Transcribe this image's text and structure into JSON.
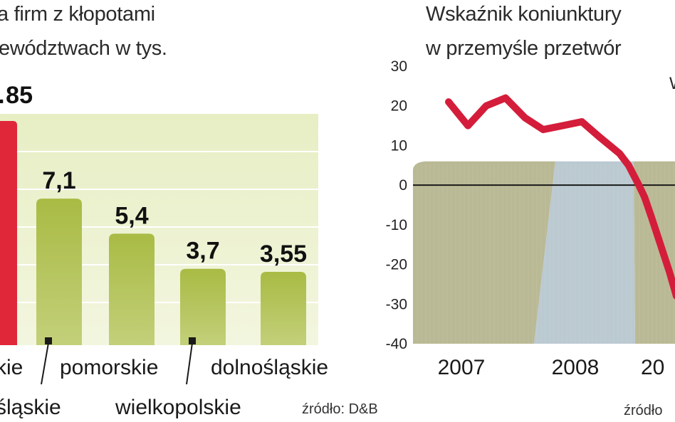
{
  "left": {
    "title_line1": "a firm z kłopotami",
    "title_line2": "ewództwach w tys.",
    "source": "źródło: D&B",
    "colors": {
      "highlight": "#e0273a",
      "bar": "#9fb03a",
      "bar_light": "#c9d67a",
      "bg_top": "#e9efc7",
      "bg_bottom": "#f6f8e6"
    },
    "chart_data": {
      "type": "bar",
      "categories": [
        "…kie",
        "…śląskie",
        "pomorskie",
        "wielkopolskie",
        "dolnośląskie"
      ],
      "values": [
        null,
        7.1,
        5.4,
        3.7,
        3.55
      ],
      "value_labels": [
        "…85",
        "7,1",
        "5,4",
        "3,7",
        "3,55"
      ],
      "highlight_index": 0,
      "category_labels": {
        "row1": [
          "kie",
          "pomorskie",
          "dolnośląskie"
        ],
        "row2": [
          "śląskie",
          "wielkopolskie"
        ]
      }
    }
  },
  "right": {
    "title_line1": "Wskaźnik koniunktury",
    "title_line2": "w przemyśle przetwór",
    "corner_label": "W",
    "source": "źródło",
    "colors": {
      "line": "#d41d3a",
      "band_olive": "#b3b18a",
      "band_blue": "#b7c6cf",
      "zero_line": "#1a1a1a"
    },
    "chart_data": {
      "type": "line",
      "title": "Wskaźnik koniunktury w przemyśle przetwór",
      "ylim": [
        -40,
        30
      ],
      "yticks": [
        30,
        20,
        10,
        0,
        -10,
        -20,
        -30,
        -40
      ],
      "ytick_labels": [
        "30",
        "20",
        "10",
        "0",
        "-10",
        "-20",
        "-30",
        "-40"
      ],
      "xtick_labels": [
        "2007",
        "2008",
        "20"
      ],
      "x": [
        2007.0,
        2007.17,
        2007.33,
        2007.5,
        2007.67,
        2007.83,
        2008.0,
        2008.17,
        2008.33,
        2008.5,
        2008.58,
        2008.67,
        2008.72,
        2008.78,
        2008.86,
        2008.94,
        2009.0
      ],
      "y": [
        21,
        15,
        20,
        22,
        17,
        14,
        15,
        16,
        12,
        8,
        5,
        0,
        -3,
        -8,
        -15,
        -22,
        -28
      ],
      "series": [
        {
          "values": [
            21,
            15,
            20,
            22,
            17,
            14,
            15,
            16,
            12,
            8,
            5,
            0,
            -3,
            -8,
            -15,
            -22,
            -28
          ]
        }
      ]
    }
  }
}
